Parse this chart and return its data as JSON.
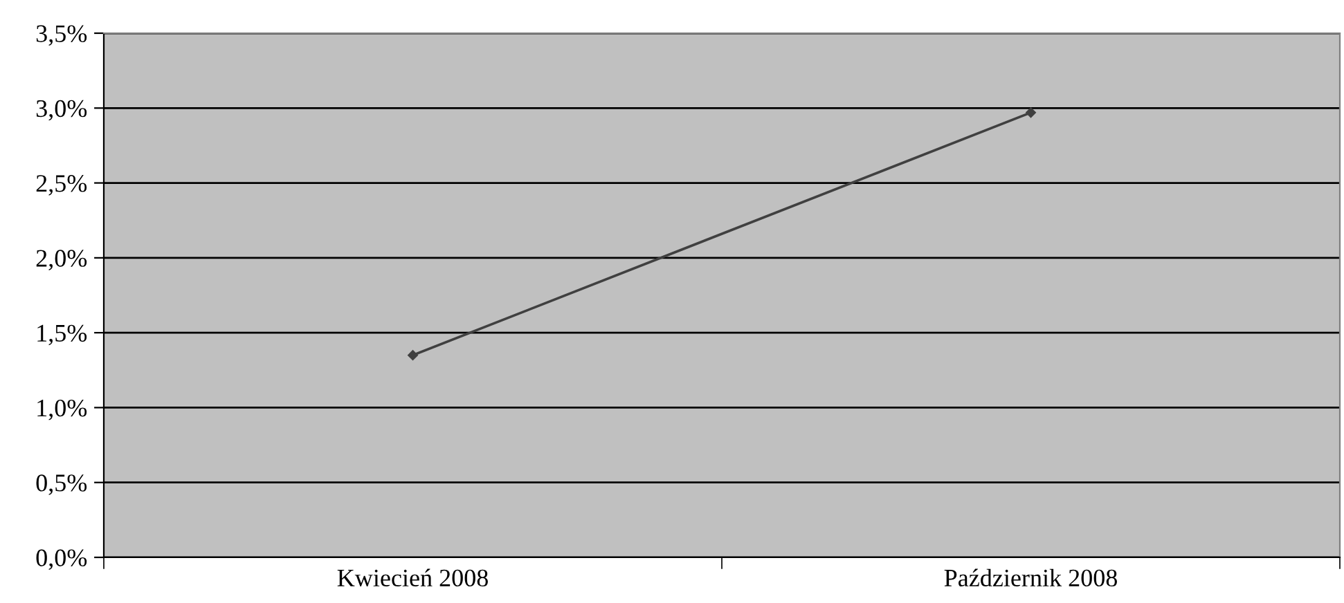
{
  "chart_data": {
    "type": "line",
    "categories": [
      "Kwiecień 2008",
      "Październik 2008"
    ],
    "series": [
      {
        "color": "#404040",
        "values": [
          1.35,
          2.97
        ]
      }
    ],
    "ylim": [
      0,
      3.5
    ],
    "yticks": [
      {
        "value": 0,
        "label": "0,0%"
      },
      {
        "value": 0.5,
        "label": "0,5%"
      },
      {
        "value": 1,
        "label": "1,0%"
      },
      {
        "value": 1.5,
        "label": "1,5%"
      },
      {
        "value": 2,
        "label": "2,0%"
      },
      {
        "value": 2.5,
        "label": "2,5%"
      },
      {
        "value": 3,
        "label": "3,0%"
      },
      {
        "value": 3.5,
        "label": "3,5%"
      }
    ],
    "grid": "y",
    "marker": "diamond",
    "line_style": "solid"
  }
}
